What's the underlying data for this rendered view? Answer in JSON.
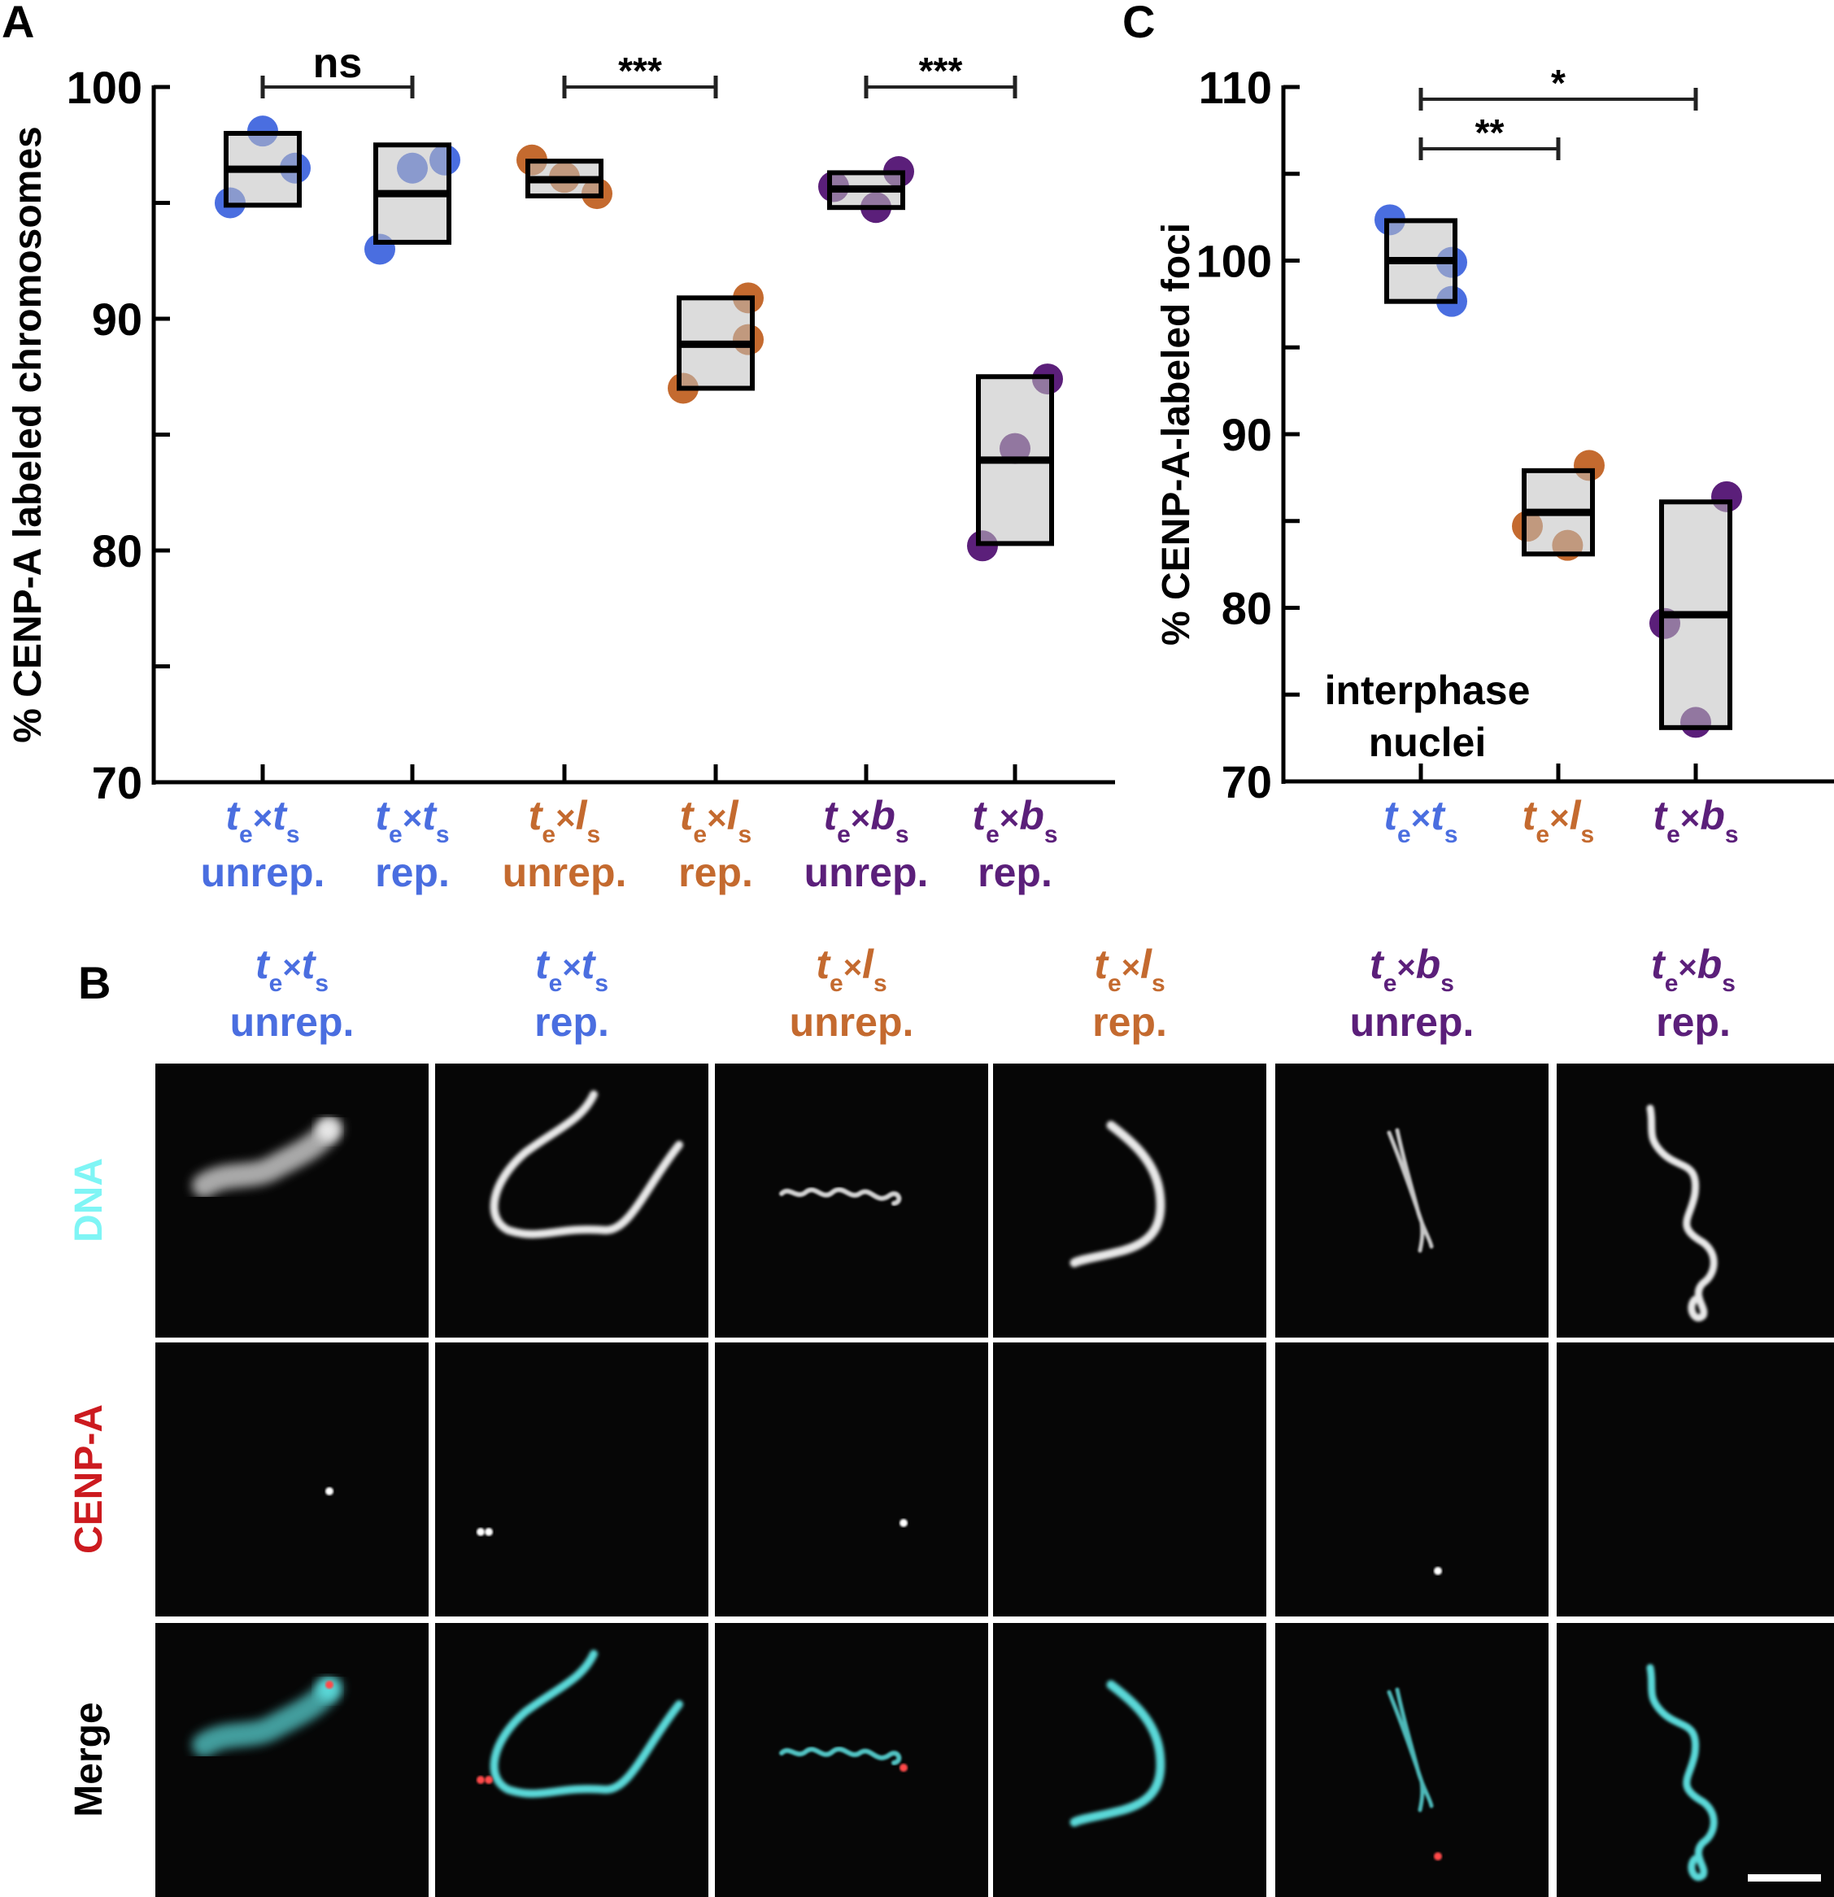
{
  "panels": {
    "a_label": "A",
    "b_label": "B",
    "c_label": "C"
  },
  "colors": {
    "te_x_ts": "#4a6ee0",
    "te_x_ls": "#c46a2f",
    "te_x_bs": "#5b1f7a",
    "box_fill": "#c0c0c0",
    "dna_label": "#7ff5f5",
    "cenpa_label": "#cc1a1f",
    "merge_label": "#000000",
    "dna_merge": "#5ad8d8",
    "cenpa_merge": "#ff4a4a"
  },
  "chart_data": [
    {
      "id": "A",
      "type": "scatter",
      "subtype": "box-with-points",
      "title": "",
      "xlabel": "",
      "ylabel": "% CENP-A labeled chromosomes",
      "ylim": [
        70,
        100
      ],
      "yticks": [
        70,
        75,
        80,
        85,
        90,
        95,
        100
      ],
      "yticklabels": [
        "70",
        "",
        "80",
        "",
        "90",
        "",
        "100"
      ],
      "grid": false,
      "categories": [
        {
          "cross": [
            "t",
            "t"
          ],
          "state": "unrep.",
          "color_key": "te_x_ts"
        },
        {
          "cross": [
            "t",
            "t"
          ],
          "state": "rep.",
          "color_key": "te_x_ts"
        },
        {
          "cross": [
            "t",
            "l"
          ],
          "state": "unrep.",
          "color_key": "te_x_ls"
        },
        {
          "cross": [
            "t",
            "l"
          ],
          "state": "rep.",
          "color_key": "te_x_ls"
        },
        {
          "cross": [
            "t",
            "b"
          ],
          "state": "unrep.",
          "color_key": "te_x_bs"
        },
        {
          "cross": [
            "t",
            "b"
          ],
          "state": "rep.",
          "color_key": "te_x_bs"
        }
      ],
      "subscripts": [
        "e",
        "s"
      ],
      "series": [
        {
          "name": "te×ts unrep.",
          "points": [
            95.0,
            98.1,
            96.5
          ],
          "jitter": [
            -1,
            0,
            1
          ],
          "box": {
            "low": 94.9,
            "median": 96.45,
            "high": 98.0
          }
        },
        {
          "name": "te×ts rep.",
          "points": [
            93.0,
            96.5,
            96.85
          ],
          "jitter": [
            -1,
            0,
            1
          ],
          "box": {
            "low": 93.3,
            "median": 95.4,
            "high": 97.5
          }
        },
        {
          "name": "te×ls unrep.",
          "points": [
            96.85,
            96.1,
            95.4
          ],
          "jitter": [
            -1,
            0,
            1
          ],
          "box": {
            "low": 95.3,
            "median": 96.0,
            "high": 96.8
          }
        },
        {
          "name": "te×ls rep.",
          "points": [
            87.0,
            90.9,
            89.1
          ],
          "jitter": [
            -1,
            1,
            1
          ],
          "box": {
            "low": 87.0,
            "median": 88.9,
            "high": 90.9
          }
        },
        {
          "name": "te×bs unrep.",
          "points": [
            95.7,
            96.35,
            94.8
          ],
          "jitter": [
            -1,
            1,
            0.3
          ],
          "box": {
            "low": 94.8,
            "median": 95.6,
            "high": 96.3
          }
        },
        {
          "name": "te×bs rep.",
          "points": [
            80.2,
            84.4,
            87.4
          ],
          "jitter": [
            -1,
            0,
            1
          ],
          "box": {
            "low": 80.3,
            "median": 83.9,
            "high": 87.5
          }
        }
      ],
      "significance": [
        {
          "from": 0,
          "to": 1,
          "label": "ns"
        },
        {
          "from": 2,
          "to": 3,
          "label": "***"
        },
        {
          "from": 4,
          "to": 5,
          "label": "***"
        }
      ]
    },
    {
      "id": "C",
      "type": "scatter",
      "subtype": "box-with-points",
      "title": "",
      "xlabel": "",
      "ylabel": "% CENP-A-labeled foci",
      "ylim": [
        70,
        110
      ],
      "yticks": [
        70,
        75,
        80,
        85,
        90,
        95,
        100,
        105,
        110
      ],
      "yticklabels": [
        "70",
        "",
        "80",
        "",
        "90",
        "",
        "100",
        "",
        "110"
      ],
      "grid": false,
      "annotation": [
        "interphase",
        "nuclei"
      ],
      "categories": [
        {
          "cross": [
            "t",
            "t"
          ],
          "state": "",
          "color_key": "te_x_ts"
        },
        {
          "cross": [
            "t",
            "l"
          ],
          "state": "",
          "color_key": "te_x_ls"
        },
        {
          "cross": [
            "t",
            "b"
          ],
          "state": "",
          "color_key": "te_x_bs"
        }
      ],
      "subscripts": [
        "e",
        "s"
      ],
      "series": [
        {
          "name": "te×ts",
          "points": [
            102.35,
            99.9,
            97.65
          ],
          "jitter": [
            -1,
            1,
            1
          ],
          "box": {
            "low": 97.65,
            "median": 100.0,
            "high": 102.3
          }
        },
        {
          "name": "te×ls",
          "points": [
            84.7,
            88.2,
            83.6
          ],
          "jitter": [
            -1,
            1,
            0.3
          ],
          "box": {
            "low": 83.1,
            "median": 85.5,
            "high": 87.9
          }
        },
        {
          "name": "te×bs",
          "points": [
            79.1,
            86.4,
            73.4
          ],
          "jitter": [
            -1,
            1,
            0
          ],
          "box": {
            "low": 73.1,
            "median": 79.6,
            "high": 86.1
          }
        }
      ],
      "significance": [
        {
          "from": 0,
          "to": 2,
          "label": "*",
          "level": 0
        },
        {
          "from": 0,
          "to": 1,
          "label": "**",
          "level": 1
        }
      ]
    }
  ],
  "panel_b": {
    "columns": [
      {
        "cross": [
          "t",
          "t"
        ],
        "state": "unrep.",
        "color_key": "te_x_ts"
      },
      {
        "cross": [
          "t",
          "t"
        ],
        "state": "rep.",
        "color_key": "te_x_ts"
      },
      {
        "cross": [
          "t",
          "l"
        ],
        "state": "unrep.",
        "color_key": "te_x_ls"
      },
      {
        "cross": [
          "t",
          "l"
        ],
        "state": "rep.",
        "color_key": "te_x_ls"
      },
      {
        "cross": [
          "t",
          "b"
        ],
        "state": "unrep.",
        "color_key": "te_x_bs"
      },
      {
        "cross": [
          "t",
          "b"
        ],
        "state": "rep.",
        "color_key": "te_x_bs"
      }
    ],
    "subscripts": [
      "e",
      "s"
    ],
    "cross_symbol": "×",
    "rows": [
      {
        "label": "DNA",
        "channel": "dna",
        "color_key": "dna_label"
      },
      {
        "label": "CENP-A",
        "channel": "cenpa",
        "color_key": "cenpa_label"
      },
      {
        "label": "Merge",
        "channel": "merge",
        "color_key": "merge_label"
      }
    ],
    "cenpa_foci_per_column": [
      1,
      2,
      1,
      0,
      1,
      0
    ],
    "scale_bar": true
  }
}
